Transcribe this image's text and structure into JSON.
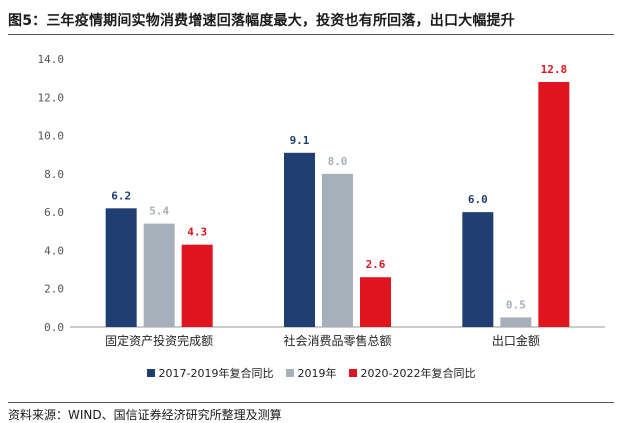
{
  "figure": {
    "title": "图5：三年疫情期间实物消费增速回落幅度最大，投资也有所回落，出口大幅提升",
    "source": "资料来源：WIND、国信证券经济研究所整理及测算"
  },
  "chart_data": {
    "type": "bar",
    "categories": [
      "固定资产投资完成额",
      "社会消费品零售总额",
      "出口金额"
    ],
    "series": [
      {
        "name": "2017-2019年复合同比",
        "color": "#1f3f73",
        "values": [
          6.2,
          9.1,
          6.0
        ]
      },
      {
        "name": "2019年",
        "color": "#a6b0bb",
        "values": [
          5.4,
          8.0,
          0.5
        ]
      },
      {
        "name": "2020-2022年复合同比",
        "color": "#e0141e",
        "values": [
          4.3,
          2.6,
          12.8
        ]
      }
    ],
    "yticks": [
      "0.0",
      "2.0",
      "4.0",
      "6.0",
      "8.0",
      "10.0",
      "12.0",
      "14.0"
    ],
    "ylim": [
      0,
      14
    ],
    "grid": false,
    "legend_position": "bottom"
  }
}
